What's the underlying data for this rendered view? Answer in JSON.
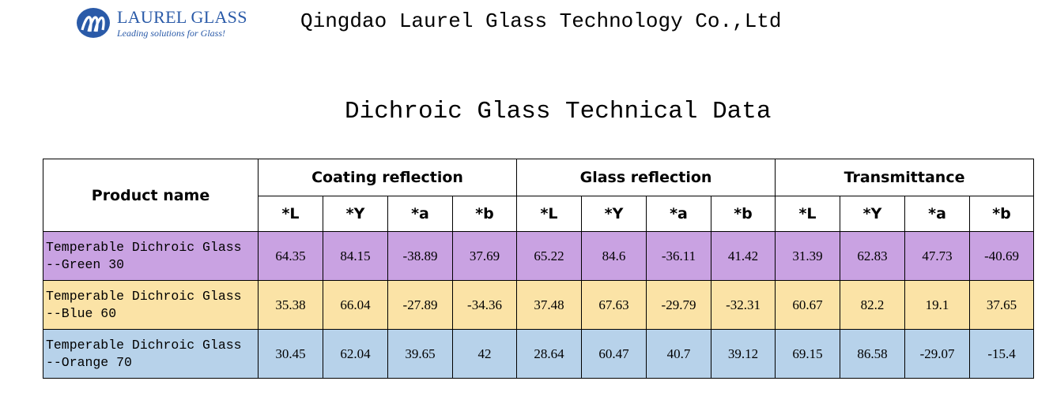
{
  "header": {
    "logo": {
      "name": "LAUREL GLASS",
      "tagline": "Leading solutions for Glass!",
      "color": "#2a5aa8",
      "icon": "laurel-globe-logo"
    },
    "company_name": "Qingdao Laurel Glass Technology Co.,Ltd"
  },
  "document": {
    "title": "Dichroic Glass Technical Data"
  },
  "table": {
    "product_header": "Product name",
    "groups": [
      {
        "label": "Coating reflection"
      },
      {
        "label": "Glass reflection"
      },
      {
        "label": "Transmittance"
      }
    ],
    "sub_headers": [
      "*L",
      "*Y",
      "*a",
      "*b",
      "*L",
      "*Y",
      "*a",
      "*b",
      "*L",
      "*Y",
      "*a",
      "*b"
    ],
    "rows": [
      {
        "name_line1": "Temperable Dichroic Glass",
        "name_line2": "--Green 30",
        "color": "#c9a2e2",
        "values": [
          "64.35",
          "84.15",
          "-38.89",
          "37.69",
          "65.22",
          "84.6",
          "-36.11",
          "41.42",
          "31.39",
          "62.83",
          "47.73",
          "-40.69"
        ]
      },
      {
        "name_line1": "Temperable Dichroic Glass",
        "name_line2": "--Blue 60",
        "color": "#fbe3a6",
        "values": [
          "35.38",
          "66.04",
          "-27.89",
          "-34.36",
          "37.48",
          "67.63",
          "-29.79",
          "-32.31",
          "60.67",
          "82.2",
          "19.1",
          "37.65"
        ]
      },
      {
        "name_line1": "Temperable Dichroic Glass",
        "name_line2": "--Orange 70",
        "color": "#b7d2ea",
        "values": [
          "30.45",
          "62.04",
          "39.65",
          "42",
          "28.64",
          "60.47",
          "40.7",
          "39.12",
          "69.15",
          "86.58",
          "-29.07",
          "-15.4"
        ]
      }
    ]
  }
}
